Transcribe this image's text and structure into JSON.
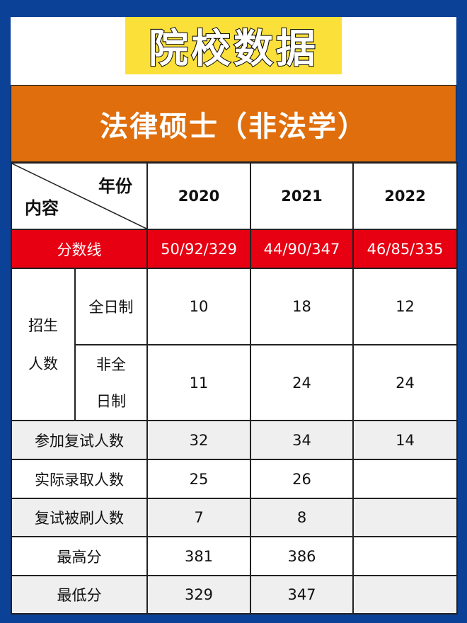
{
  "banner": {
    "title": "院校数据"
  },
  "header": {
    "title": "法律硕士（非法学）"
  },
  "table": {
    "corner": {
      "top": "年份",
      "bottom": "内容"
    },
    "years": [
      "2020",
      "2021",
      "2022"
    ],
    "score_line": {
      "label": "分数线",
      "values": [
        "50/92/329",
        "44/90/347",
        "46/85/335"
      ]
    },
    "enrollment": {
      "label_line1": "招生",
      "label_line2": "人数",
      "full_time": {
        "label": "全日制",
        "values": [
          "10",
          "18",
          "12"
        ]
      },
      "part_time": {
        "label_line1": "非全",
        "label_line2": "日制",
        "values": [
          "11",
          "24",
          "24"
        ]
      }
    },
    "rows": [
      {
        "label": "参加复试人数",
        "values": [
          "32",
          "34",
          "14"
        ]
      },
      {
        "label": "实际录取人数",
        "values": [
          "25",
          "26",
          ""
        ]
      },
      {
        "label": "复试被刷人数",
        "values": [
          "7",
          "8",
          ""
        ]
      },
      {
        "label": "最高分",
        "values": [
          "381",
          "386",
          ""
        ]
      },
      {
        "label": "最低分",
        "values": [
          "329",
          "347",
          ""
        ]
      }
    ]
  }
}
